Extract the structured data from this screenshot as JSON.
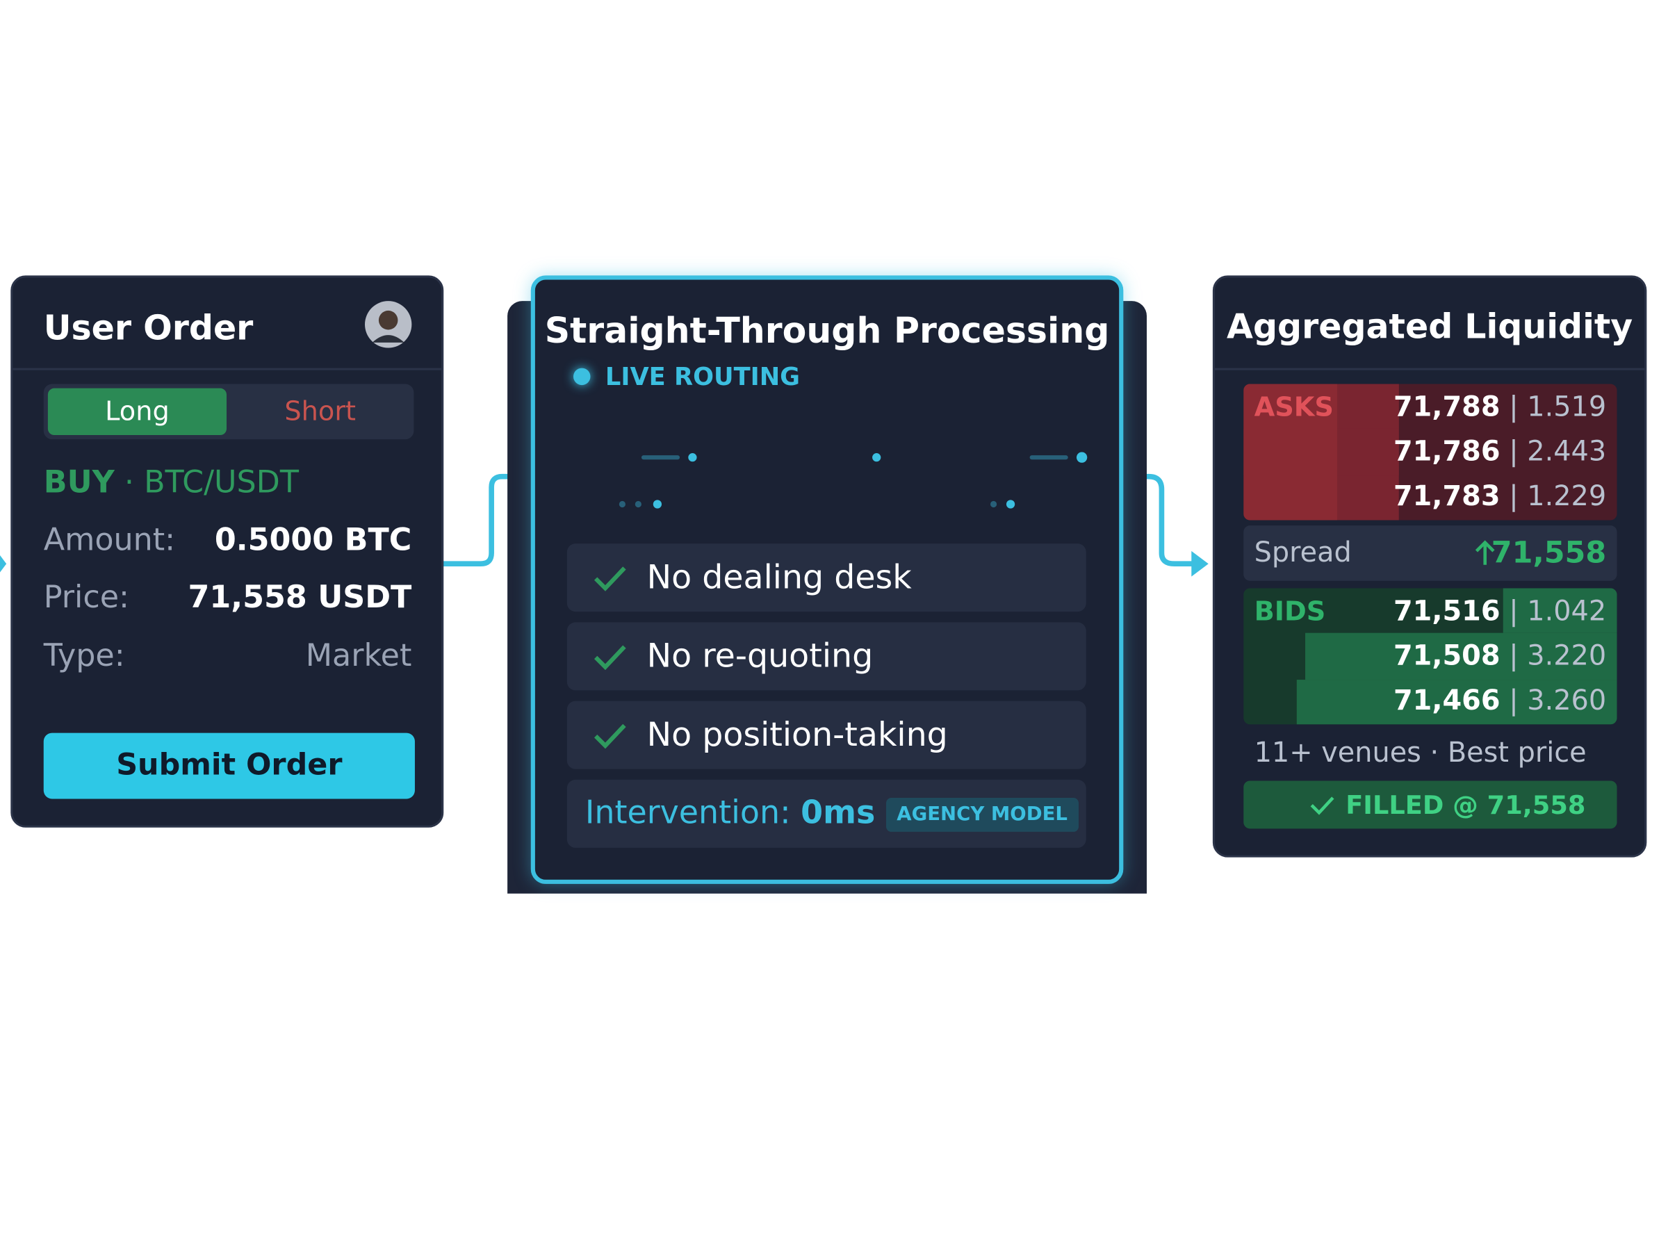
{
  "user_order": {
    "title": "User Order",
    "tabs": [
      "Long",
      "Short"
    ],
    "side": "BUY",
    "pair": "· BTC/USDT",
    "fields": [
      {
        "label": "Amount:",
        "value": "0.5000 BTC"
      },
      {
        "label": "Price:",
        "value": "71,558 USDT"
      },
      {
        "label": "Type:",
        "value": "Market"
      }
    ],
    "button": "Submit Order"
  },
  "processing": {
    "title": "Straight-Through Processing",
    "status": "LIVE ROUTING",
    "features": [
      "No dealing desk",
      "No re-quoting",
      "No position-taking"
    ],
    "intervention_label": "Intervention:",
    "intervention_value": "0ms",
    "badge": "AGENCY MODEL"
  },
  "liquidity": {
    "title": "Aggregated Liquidity",
    "asks": {
      "label": "ASKS",
      "rows": [
        [
          "71,788",
          "1.519"
        ],
        [
          "71,786",
          "2.443"
        ],
        [
          "71,783",
          "1.229"
        ]
      ]
    },
    "spread": {
      "label": "Spread",
      "value": "71,558"
    },
    "bids": {
      "label": "BIDS",
      "rows": [
        [
          "71,516",
          "1.042"
        ],
        [
          "71,508",
          "3.220"
        ],
        [
          "71,466",
          "3.260"
        ]
      ]
    },
    "footer": "11+ venues · Best price",
    "filled": "FILLED @ 71,558"
  }
}
